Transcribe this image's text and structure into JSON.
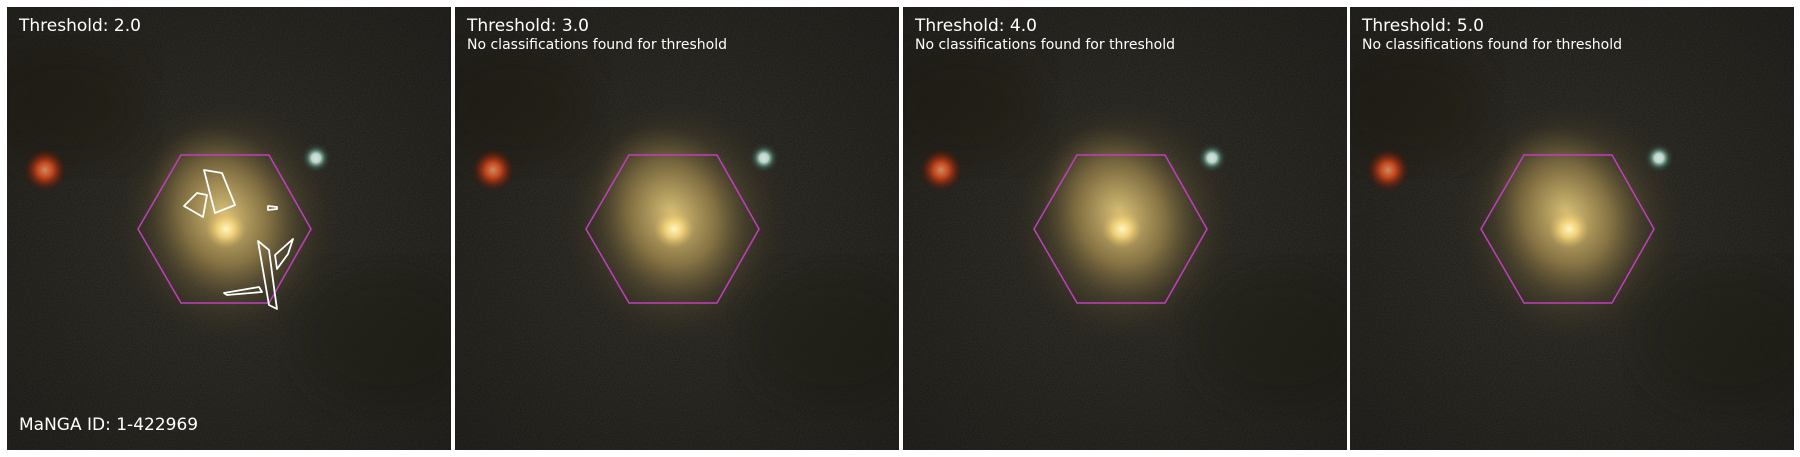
{
  "panels": [
    {
      "title": "Threshold: 2.0",
      "note": ""
    },
    {
      "title": "Threshold: 3.0",
      "note": "No classifications found for threshold"
    },
    {
      "title": "Threshold: 4.0",
      "note": "No classifications found for threshold"
    },
    {
      "title": "Threshold: 5.0",
      "note": "No classifications found for threshold"
    }
  ],
  "manga_id": "MaNGA ID: 1-422969",
  "colors": {
    "sky": "#1c1b16",
    "hexagon": "#c03fbe",
    "contour": "#ffffff",
    "text": "#ffffff",
    "galaxy_core": "#fff2b0",
    "red_star": "#ff5a22",
    "white_star": "#e8fff8"
  }
}
